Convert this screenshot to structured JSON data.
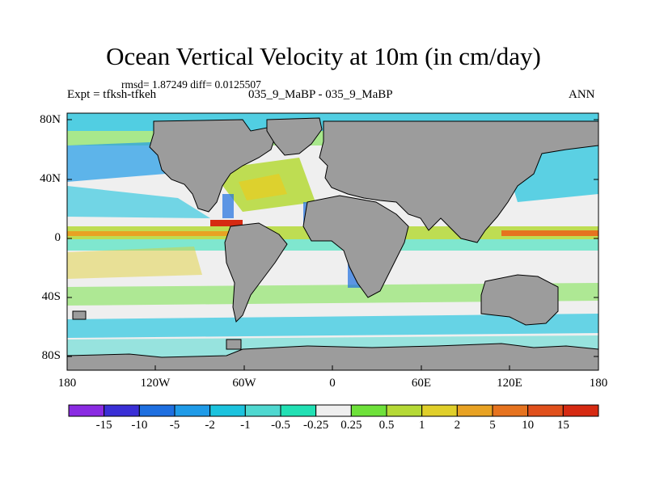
{
  "title": "Ocean Vertical Velocity at 10m (in cm/day)",
  "stats": "rmsd= 1.87249 diff= 0.0125507",
  "experiment": "Expt = tfksh-tfkeh",
  "cases": "035_9_MaBP - 035_9_MaBP",
  "season": "ANN",
  "y_axis_labels": [
    "80N",
    "40N",
    "0",
    "40S",
    "80S"
  ],
  "x_axis_labels": [
    "180",
    "120W",
    "60W",
    "0",
    "60E",
    "120E",
    "180"
  ],
  "colorbar": {
    "labels": [
      "-15",
      "-10",
      "-5",
      "-2",
      "-1",
      "-0.5",
      "-0.25",
      "0.25",
      "0.5",
      "1",
      "2",
      "5",
      "10",
      "15"
    ],
    "colors": [
      "#8a2be2",
      "#3a2fd6",
      "#1e6fe0",
      "#1f9be8",
      "#1cc3de",
      "#4fd8d0",
      "#22e0b4",
      "#efefef",
      "#6ee13a",
      "#b5d936",
      "#e0cf2a",
      "#e8a223",
      "#e6731f",
      "#e0501c",
      "#d62a12"
    ]
  },
  "colors": {
    "land": "#9c9c9c",
    "ocean_neutral": "#efefef"
  }
}
